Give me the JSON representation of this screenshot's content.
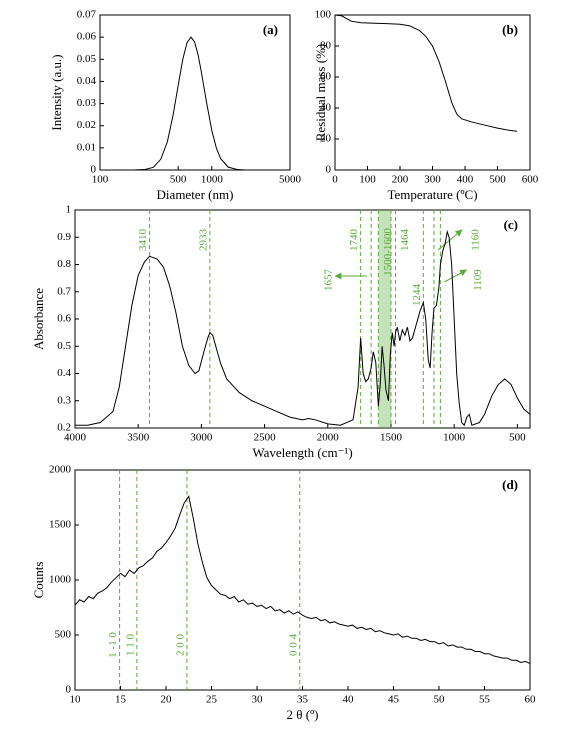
{
  "chart_data": [
    {
      "type": "line",
      "panel_label": "(a)",
      "x_label": "Diameter (nm)",
      "y_label": "Intensity (a.u.)",
      "xscale": "log",
      "color": "#000000",
      "x": [
        100,
        200,
        250,
        300,
        350,
        400,
        450,
        500,
        550,
        600,
        650,
        700,
        750,
        800,
        900,
        1000,
        1100,
        1200,
        1400,
        1700,
        2000,
        3000,
        5000
      ],
      "values": [
        0,
        0,
        0.0002,
        0.0012,
        0.0049,
        0.0127,
        0.0247,
        0.0382,
        0.05,
        0.0575,
        0.06,
        0.0579,
        0.0525,
        0.0452,
        0.0301,
        0.0178,
        0.0098,
        0.0051,
        0.0013,
        0.0002,
        0,
        0,
        0
      ],
      "xlim": [
        100,
        5000
      ],
      "xticks": [
        100,
        500,
        1000,
        5000
      ],
      "ylim": [
        0,
        0.07
      ],
      "yticks": [
        0,
        0.01,
        0.02,
        0.03,
        0.04,
        0.05,
        0.06,
        0.07
      ]
    },
    {
      "type": "line",
      "panel_label": "(b)",
      "x_label": "Temperature (ºC)",
      "y_label": "Residual mass (%)",
      "color": "#000000",
      "x": [
        0,
        20,
        50,
        80,
        150,
        200,
        230,
        260,
        280,
        300,
        320,
        340,
        360,
        375,
        390,
        420,
        460,
        500,
        540,
        560
      ],
      "values": [
        100,
        99.5,
        96,
        95,
        94.5,
        94,
        93,
        90,
        86,
        80,
        70,
        57,
        43,
        36,
        33,
        31,
        29,
        27,
        25.5,
        25
      ],
      "xlim": [
        0,
        600
      ],
      "xticks": [
        0,
        100,
        200,
        300,
        400,
        500,
        600
      ],
      "ylim": [
        0,
        100
      ],
      "yticks": [
        0,
        20,
        40,
        60,
        80,
        100
      ]
    },
    {
      "type": "line",
      "panel_label": "(c)",
      "x_label": "Wavelength (cm⁻¹)",
      "y_label": "Absorbance",
      "color": "#000000",
      "marker_color": "#5aab3a",
      "x": [
        4000,
        3900,
        3800,
        3700,
        3650,
        3600,
        3550,
        3500,
        3450,
        3410,
        3350,
        3300,
        3250,
        3200,
        3150,
        3100,
        3050,
        3020,
        2980,
        2950,
        2933,
        2910,
        2880,
        2850,
        2800,
        2700,
        2600,
        2500,
        2400,
        2300,
        2200,
        2150,
        2100,
        2000,
        1900,
        1800,
        1760,
        1740,
        1720,
        1700,
        1680,
        1657,
        1640,
        1620,
        1600,
        1585,
        1570,
        1555,
        1540,
        1520,
        1505,
        1490,
        1475,
        1464,
        1450,
        1430,
        1410,
        1390,
        1370,
        1350,
        1330,
        1300,
        1270,
        1244,
        1225,
        1205,
        1190,
        1175,
        1160,
        1140,
        1120,
        1109,
        1090,
        1070,
        1055,
        1040,
        1020,
        1000,
        980,
        960,
        940,
        920,
        900,
        880,
        860,
        800,
        760,
        700,
        650,
        600,
        550,
        500,
        450,
        400
      ],
      "values": [
        0.21,
        0.21,
        0.22,
        0.26,
        0.35,
        0.5,
        0.65,
        0.76,
        0.81,
        0.83,
        0.82,
        0.79,
        0.72,
        0.62,
        0.5,
        0.43,
        0.4,
        0.41,
        0.48,
        0.53,
        0.55,
        0.54,
        0.49,
        0.44,
        0.38,
        0.33,
        0.3,
        0.28,
        0.26,
        0.24,
        0.23,
        0.235,
        0.23,
        0.215,
        0.21,
        0.23,
        0.35,
        0.53,
        0.4,
        0.37,
        0.38,
        0.42,
        0.48,
        0.44,
        0.28,
        0.36,
        0.5,
        0.43,
        0.34,
        0.3,
        0.47,
        0.55,
        0.5,
        0.55,
        0.57,
        0.52,
        0.56,
        0.54,
        0.57,
        0.52,
        0.53,
        0.58,
        0.63,
        0.66,
        0.6,
        0.45,
        0.42,
        0.55,
        0.64,
        0.65,
        0.72,
        0.8,
        0.85,
        0.88,
        0.92,
        0.9,
        0.8,
        0.6,
        0.4,
        0.29,
        0.22,
        0.21,
        0.24,
        0.25,
        0.21,
        0.22,
        0.25,
        0.32,
        0.36,
        0.38,
        0.36,
        0.31,
        0.27,
        0.25
      ],
      "markers": [
        3410,
        2933,
        1740,
        1657,
        {
          "range": [
            1500,
            1600
          ],
          "label": "1500-1600"
        },
        1464,
        1244,
        1160,
        1109
      ],
      "xlim": [
        4000,
        400
      ],
      "xticks": [
        4000,
        3500,
        3000,
        2500,
        2000,
        1500,
        1000,
        500
      ],
      "ylim": [
        0.2,
        1
      ],
      "yticks": [
        0.2,
        0.3,
        0.4,
        0.5,
        0.6,
        0.7,
        0.8,
        0.9,
        1
      ]
    },
    {
      "type": "line",
      "panel_label": "(d)",
      "x_label": "2 θ (º)",
      "y_label": "Counts",
      "color": "#000000",
      "marker_color": "#5aab3a",
      "x": [
        10,
        10.5,
        11,
        11.5,
        12,
        12.5,
        13,
        13.5,
        14,
        14.5,
        15,
        15.5,
        16,
        16.5,
        17,
        17.5,
        18,
        18.5,
        19,
        19.5,
        20,
        20.5,
        21,
        21.5,
        22,
        22.5,
        23,
        23.5,
        24,
        24.5,
        25,
        25.5,
        26,
        26.5,
        27,
        27.5,
        28,
        28.5,
        29,
        29.5,
        30,
        30.5,
        31,
        31.5,
        32,
        32.5,
        33,
        33.5,
        34,
        34.5,
        35,
        35.5,
        36,
        36.5,
        37,
        37.5,
        38,
        38.5,
        39,
        39.5,
        40,
        40.5,
        41,
        41.5,
        42,
        42.5,
        43,
        43.5,
        44,
        44.5,
        45,
        45.5,
        46,
        46.5,
        47,
        47.5,
        48,
        48.5,
        49,
        49.5,
        50,
        50.5,
        51,
        51.5,
        52,
        52.5,
        53,
        53.5,
        54,
        54.5,
        55,
        55.5,
        56,
        56.5,
        57,
        57.5,
        58,
        58.5,
        59,
        59.5,
        60
      ],
      "values": [
        770,
        820,
        800,
        850,
        830,
        880,
        900,
        930,
        980,
        1020,
        1060,
        1030,
        1090,
        1060,
        1110,
        1130,
        1170,
        1200,
        1260,
        1290,
        1340,
        1400,
        1470,
        1590,
        1700,
        1760,
        1560,
        1330,
        1160,
        1020,
        950,
        910,
        870,
        860,
        830,
        850,
        800,
        820,
        780,
        790,
        760,
        770,
        740,
        760,
        720,
        730,
        700,
        720,
        690,
        710,
        680,
        660,
        650,
        660,
        630,
        640,
        610,
        620,
        600,
        590,
        580,
        590,
        560,
        570,
        550,
        560,
        530,
        540,
        520,
        510,
        500,
        510,
        480,
        490,
        470,
        470,
        450,
        460,
        440,
        440,
        420,
        430,
        400,
        410,
        390,
        390,
        370,
        370,
        350,
        350,
        330,
        330,
        310,
        300,
        290,
        290,
        270,
        270,
        250,
        260,
        240
      ],
      "markers": [
        {
          "value": 14.9,
          "label": "1 -1 0"
        },
        {
          "value": 16.8,
          "label": "1 1 0"
        },
        {
          "value": 22.3,
          "label": "2 0 0"
        },
        {
          "value": 34.7,
          "label": "0 0 4"
        }
      ],
      "xlim": [
        10,
        60
      ],
      "xticks": [
        10,
        15,
        20,
        25,
        30,
        35,
        40,
        45,
        50,
        55,
        60
      ],
      "ylim": [
        0,
        2000
      ],
      "yticks": [
        0,
        500,
        1000,
        1500,
        2000
      ]
    }
  ]
}
